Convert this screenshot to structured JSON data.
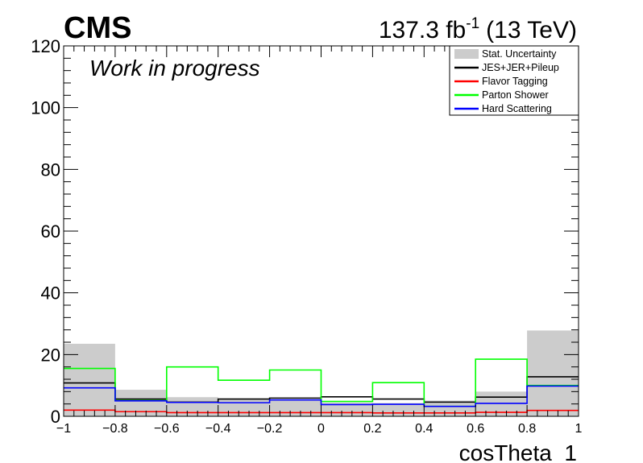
{
  "header": {
    "experiment": "CMS",
    "lumi_value": "137.3 fb",
    "lumi_exp": "-1",
    "energy": "(13 TeV)",
    "status": "Work in progress"
  },
  "chart_data": {
    "type": "histogram",
    "xlabel": "cosTheta_1",
    "ylabel": "",
    "xlim": [
      -1,
      1
    ],
    "ylim": [
      0,
      120
    ],
    "bin_edges": [
      -1,
      -0.8,
      -0.6,
      -0.4,
      -0.2,
      0,
      0.2,
      0.4,
      0.6,
      0.8,
      1
    ],
    "x_ticks": [
      {
        "value": -1,
        "label": "−1"
      },
      {
        "value": -0.8,
        "label": "−0.8"
      },
      {
        "value": -0.6,
        "label": "−0.6"
      },
      {
        "value": -0.4,
        "label": "−0.4"
      },
      {
        "value": -0.2,
        "label": "−0.2"
      },
      {
        "value": 0,
        "label": "0"
      },
      {
        "value": 0.2,
        "label": "0.2"
      },
      {
        "value": 0.4,
        "label": "0.4"
      },
      {
        "value": 0.6,
        "label": "0.6"
      },
      {
        "value": 0.8,
        "label": "0.8"
      },
      {
        "value": 1,
        "label": "1"
      }
    ],
    "y_ticks": [
      {
        "value": 0,
        "label": "0"
      },
      {
        "value": 20,
        "label": "20"
      },
      {
        "value": 40,
        "label": "40"
      },
      {
        "value": 60,
        "label": "60"
      },
      {
        "value": 80,
        "label": "80"
      },
      {
        "value": 100,
        "label": "100"
      },
      {
        "value": 120,
        "label": "120"
      }
    ],
    "legend_position": "top-right",
    "series": [
      {
        "name": "Stat. Uncertainty",
        "style": "fill",
        "color": "#cccccc",
        "values": [
          23.5,
          8.6,
          6.2,
          5.4,
          5.2,
          4.4,
          4.3,
          5.1,
          8.0,
          27.8
        ]
      },
      {
        "name": "JES+JER+Pileup",
        "style": "line",
        "color": "#000000",
        "values": [
          10.8,
          5.6,
          4.6,
          5.6,
          5.9,
          6.3,
          5.6,
          4.6,
          6.2,
          12.8
        ]
      },
      {
        "name": "Flavor Tagging",
        "style": "line",
        "color": "#ff0000",
        "values": [
          2.0,
          1.5,
          1.2,
          1.2,
          1.2,
          1.2,
          1.1,
          1.1,
          1.3,
          1.9
        ]
      },
      {
        "name": "Parton Shower",
        "style": "line",
        "color": "#00ff00",
        "values": [
          15.5,
          5.1,
          16.0,
          11.7,
          15.0,
          4.8,
          10.9,
          3.2,
          18.5,
          10.0
        ]
      },
      {
        "name": "Hard Scattering",
        "style": "line",
        "color": "#0000ff",
        "values": [
          9.2,
          5.0,
          4.5,
          4.4,
          5.3,
          3.8,
          3.9,
          3.2,
          4.2,
          9.8
        ]
      }
    ]
  }
}
